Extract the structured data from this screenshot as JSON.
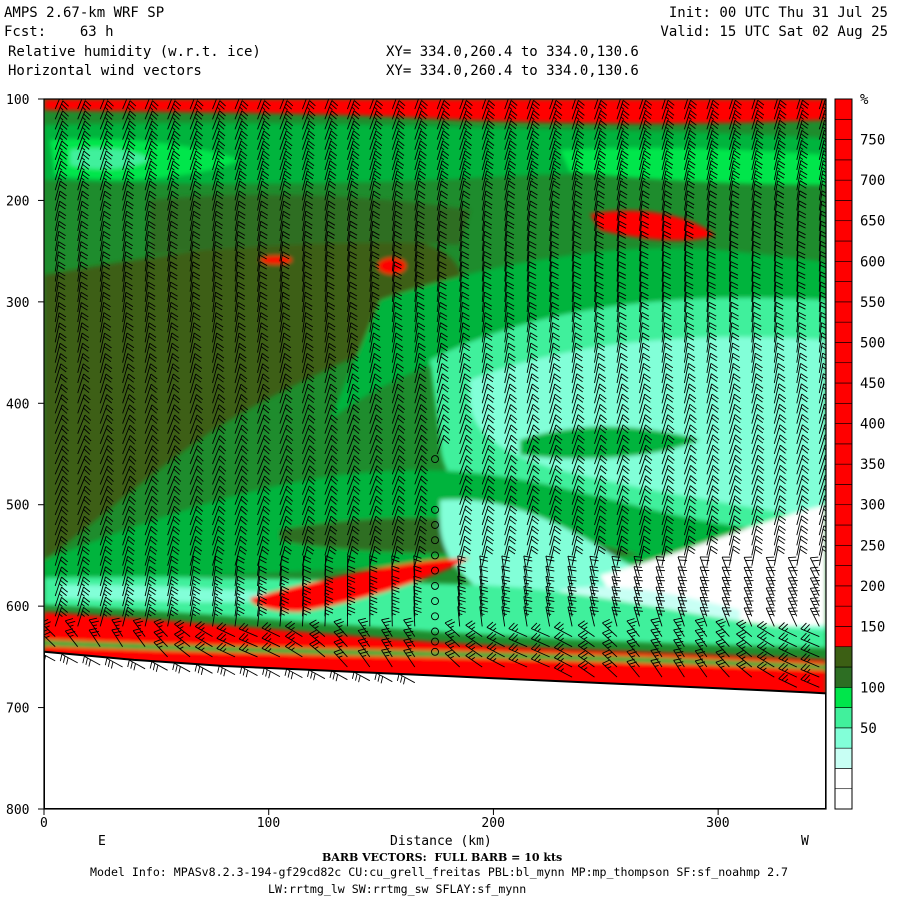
{
  "header": {
    "line1_left": "AMPS 2.67-km WRF SP",
    "line1_right": "Init: 00 UTC Thu 31 Jul 25",
    "line2_left": "Fcst:    63 h",
    "line2_right": "Valid: 15 UTC Sat 02 Aug 25",
    "field1": "Relative humidity (w.r.t. ice)",
    "field2": "Horizontal wind vectors",
    "xy1": "XY= 334.0,260.4 to 334.0,130.6",
    "xy2": "XY= 334.0,260.4 to 334.0,130.6"
  },
  "axes": {
    "xlabel": "Distance (km)",
    "left_end_label": "E",
    "right_end_label": "W",
    "ylabel_partial": "...",
    "colorbar_unit": "%"
  },
  "footer": {
    "barb_note": "BARB VECTORS:  FULL BARB = 10 kts",
    "model_info": "Model Info: MPASv8.2.3-194-gf29cd82c CU:cu_grell_freitas PBL:bl_mynn MP:mp_thompson SF:sf_noahmp 2.7",
    "model_info2": "LW:rrtmg_lw SW:rrtmg_sw SFLAY:sf_mynn"
  },
  "chart_data": {
    "type": "heatmap",
    "title": "Relative humidity (w.r.t. ice)",
    "xlabel": "Distance (km)",
    "ylabel": "",
    "xlim": [
      0,
      348
    ],
    "ylim": [
      800,
      100
    ],
    "x_ticks": [
      0,
      100,
      200,
      300
    ],
    "y_ticks": [
      100,
      200,
      300,
      400,
      500,
      600,
      700,
      800
    ],
    "grid": false,
    "colorbar": {
      "unit": "%",
      "tick_labels": [
        50,
        100,
        150,
        200,
        250,
        300,
        350,
        400,
        450,
        500,
        550,
        600,
        650,
        700,
        750
      ],
      "levels": [
        0,
        5,
        10,
        25,
        50,
        75,
        100,
        110,
        125,
        150,
        175,
        200,
        225,
        250,
        275,
        300,
        325,
        350,
        375,
        400,
        425,
        450,
        475,
        500,
        525,
        550,
        575,
        600,
        625,
        650,
        675,
        700,
        725,
        750,
        775,
        800
      ],
      "colors": {
        "white": "#ffffff",
        "pale_cyan": "#c8fff4",
        "cyan": "#82ffd8",
        "aqua_green": "#41f09c",
        "bright_green": "#00e64b",
        "green": "#00b43c",
        "mid_green": "#1e8c2d",
        "dark_green": "#2d6e23",
        "olive": "#3c5f14",
        "red": "#ff0000"
      }
    },
    "terrain_pressure": [
      {
        "x": 0,
        "p": 645
      },
      {
        "x": 20,
        "p": 649
      },
      {
        "x": 40,
        "p": 653
      },
      {
        "x": 60,
        "p": 656
      },
      {
        "x": 80,
        "p": 659
      },
      {
        "x": 100,
        "p": 661
      },
      {
        "x": 120,
        "p": 663
      },
      {
        "x": 140,
        "p": 665
      },
      {
        "x": 160,
        "p": 667
      },
      {
        "x": 180,
        "p": 669
      },
      {
        "x": 200,
        "p": 671
      },
      {
        "x": 220,
        "p": 673
      },
      {
        "x": 240,
        "p": 675
      },
      {
        "x": 260,
        "p": 677
      },
      {
        "x": 280,
        "p": 679
      },
      {
        "x": 300,
        "p": 681
      },
      {
        "x": 320,
        "p": 683
      },
      {
        "x": 340,
        "p": 685
      },
      {
        "x": 348,
        "p": 686
      }
    ],
    "features": [
      {
        "name": "upper_saturated_layer",
        "x_range": [
          0,
          348
        ],
        "p_range": [
          100,
          130
        ],
        "rh_band": "red"
      },
      {
        "name": "mid_level_moist_layer",
        "x_range": [
          0,
          170
        ],
        "p_range": [
          220,
          560
        ],
        "rh_band": "olive"
      },
      {
        "name": "dry_tongue",
        "x_range": [
          200,
          348
        ],
        "p_range": [
          300,
          560
        ],
        "rh_band": "cyan"
      },
      {
        "name": "near_surface_saturated_layer",
        "x_range": [
          0,
          348
        ],
        "p_range": [
          610,
          685
        ],
        "rh_band": "red"
      },
      {
        "name": "embedded_saturated_streak",
        "x_range": [
          100,
          190
        ],
        "p_range": [
          560,
          610
        ],
        "rh_band": "red"
      },
      {
        "name": "dry_pocket",
        "x_range": [
          250,
          348
        ],
        "p_range": [
          515,
          640
        ],
        "rh_band": "white"
      },
      {
        "name": "small_saturated_patch",
        "x_range": [
          235,
          300
        ],
        "p_range": [
          205,
          245
        ],
        "rh_band": "red"
      }
    ],
    "wind_barbs": {
      "units": "kts",
      "full_barb_kts": 10,
      "columns_x_km": [
        5,
        15,
        25,
        35,
        45,
        55,
        65,
        75,
        85,
        95,
        105,
        115,
        125,
        135,
        145,
        155,
        165,
        175,
        185,
        195,
        205,
        215,
        225,
        235,
        245,
        255,
        265,
        275,
        285,
        295,
        305,
        315,
        325,
        335,
        345
      ],
      "calm_points": {
        "x_km": 174,
        "p_hpa": [
          455,
          505,
          520,
          535,
          550,
          565,
          580,
          595,
          610,
          625,
          635,
          645
        ]
      }
    }
  }
}
